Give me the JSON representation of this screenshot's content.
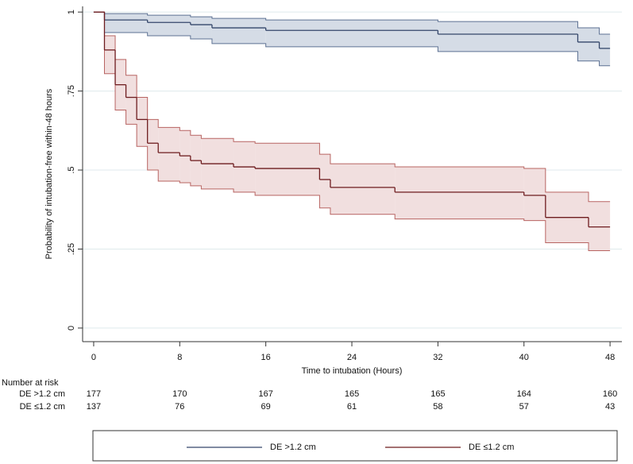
{
  "chart_data": {
    "type": "km-step",
    "ylabel": "Probability of intubation-free within-48 hours",
    "xlabel": "Time to intubation (Hours)",
    "xlim": [
      -1.03,
      49.1
    ],
    "xticks": [
      0,
      8,
      16,
      24,
      32,
      40,
      48
    ],
    "ylim": [
      -0.043,
      1.018
    ],
    "yticks": [
      {
        "value": 0,
        "label": "0"
      },
      {
        "value": 0.25,
        "label": ".25"
      },
      {
        "value": 0.5,
        "label": ".5"
      },
      {
        "value": 0.75,
        "label": ".75"
      },
      {
        "value": 1,
        "label": "1"
      }
    ],
    "grid": true,
    "series": [
      {
        "name": "DE >1.2 cm",
        "color": "#34466a",
        "band_color": "#d5dce6",
        "edge_color": "#5d7193",
        "x": [
          0,
          1,
          5,
          9,
          11,
          16,
          32,
          45,
          47,
          48
        ],
        "values": [
          1,
          0.975,
          0.967,
          0.96,
          0.95,
          0.942,
          0.93,
          0.905,
          0.885,
          0.885
        ],
        "upper": [
          1,
          0.995,
          0.99,
          0.985,
          0.98,
          0.975,
          0.97,
          0.95,
          0.93,
          0.93
        ],
        "lower": [
          1,
          0.935,
          0.925,
          0.915,
          0.9,
          0.89,
          0.875,
          0.845,
          0.83,
          0.83
        ]
      },
      {
        "name": "DE ≤1.2 cm",
        "color": "#6e1c1f",
        "band_color": "#f1dfdf",
        "edge_color": "#b86462",
        "x": [
          0,
          1,
          2,
          3,
          4,
          5,
          6,
          8,
          9,
          10,
          13,
          15,
          21,
          22,
          28,
          40,
          42,
          46,
          48
        ],
        "values": [
          1,
          0.88,
          0.77,
          0.73,
          0.66,
          0.585,
          0.555,
          0.545,
          0.53,
          0.52,
          0.51,
          0.505,
          0.47,
          0.445,
          0.43,
          0.42,
          0.35,
          0.32,
          0.32
        ],
        "upper": [
          1,
          0.925,
          0.85,
          0.8,
          0.73,
          0.66,
          0.635,
          0.625,
          0.61,
          0.6,
          0.59,
          0.585,
          0.55,
          0.52,
          0.51,
          0.505,
          0.43,
          0.4,
          0.4
        ],
        "lower": [
          1,
          0.805,
          0.69,
          0.645,
          0.575,
          0.5,
          0.465,
          0.46,
          0.45,
          0.44,
          0.43,
          0.42,
          0.38,
          0.36,
          0.345,
          0.34,
          0.27,
          0.245,
          0.245
        ]
      }
    ],
    "risk_table": {
      "title": "Number at risk",
      "rows": [
        {
          "label": "DE >1.2 cm",
          "counts": [
            177,
            170,
            167,
            165,
            165,
            164,
            160
          ]
        },
        {
          "label": "DE ≤1.2 cm",
          "counts": [
            137,
            76,
            69,
            61,
            58,
            57,
            43
          ]
        }
      ]
    }
  }
}
